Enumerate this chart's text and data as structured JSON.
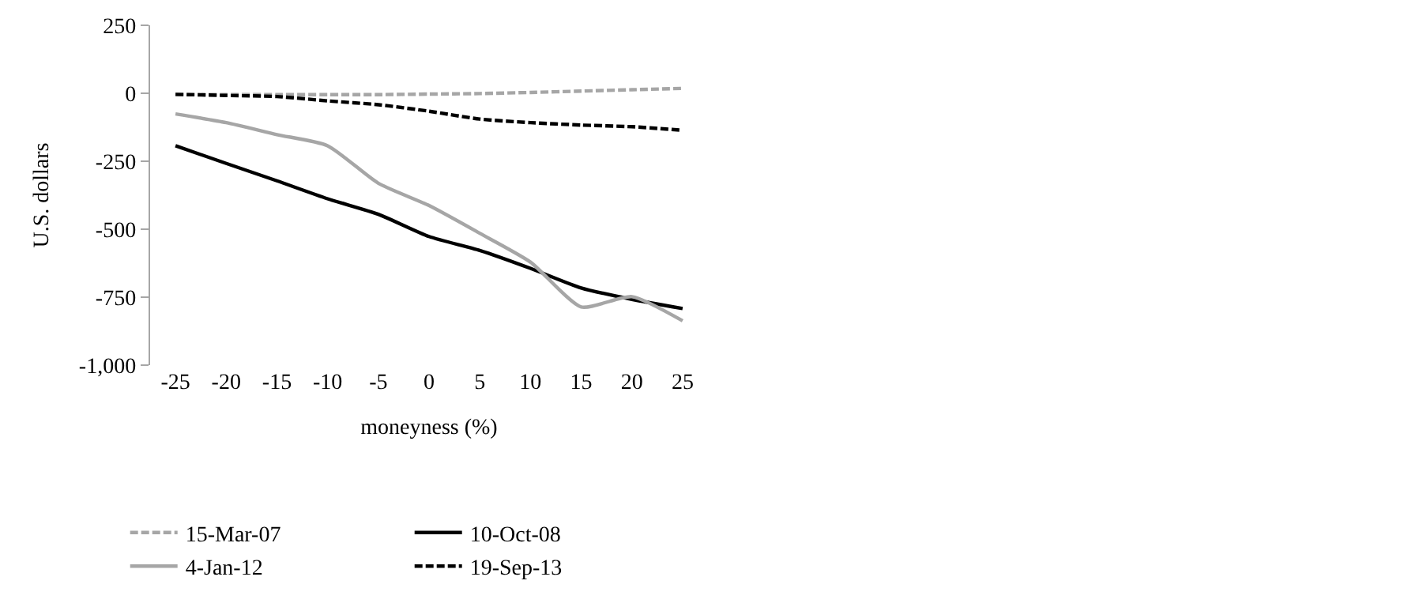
{
  "chart_data": {
    "type": "line",
    "xlabel": "moneyness (%)",
    "ylabel": "U.S. dollars",
    "categories": [
      "-25",
      "-20",
      "-15",
      "-10",
      "-5",
      "0",
      "5",
      "10",
      "15",
      "20",
      "25"
    ],
    "ylim": [
      -1000,
      250
    ],
    "yticks": [
      {
        "value": -1000,
        "label": "-1,000"
      },
      -750,
      -500,
      -250,
      0,
      250
    ],
    "legend": "bottom",
    "marker": "none",
    "series": [
      {
        "name": "15-Mar-07",
        "color": "#a6a6a6",
        "line_style": "dashed",
        "values": [
          -5,
          -5,
          -5,
          -5,
          -5,
          -3,
          -1,
          3,
          8,
          13,
          18
        ]
      },
      {
        "name": "10-Oct-08",
        "color": "#000000",
        "line_style": "solid",
        "values": [
          -193,
          -258,
          -322,
          -388,
          -445,
          -527,
          -578,
          -644,
          -716,
          -758,
          -792
        ]
      },
      {
        "name": "4-Jan-12",
        "color": "#a6a6a6",
        "line_style": "solid",
        "values": [
          -76,
          -108,
          -152,
          -193,
          -331,
          -413,
          -515,
          -621,
          -786,
          -748,
          -837
        ]
      },
      {
        "name": "19-Sep-13",
        "color": "#000000",
        "line_style": "dashed",
        "values": [
          -4,
          -8,
          -12,
          -28,
          -42,
          -66,
          -95,
          -108,
          -117,
          -123,
          -136
        ]
      }
    ]
  }
}
